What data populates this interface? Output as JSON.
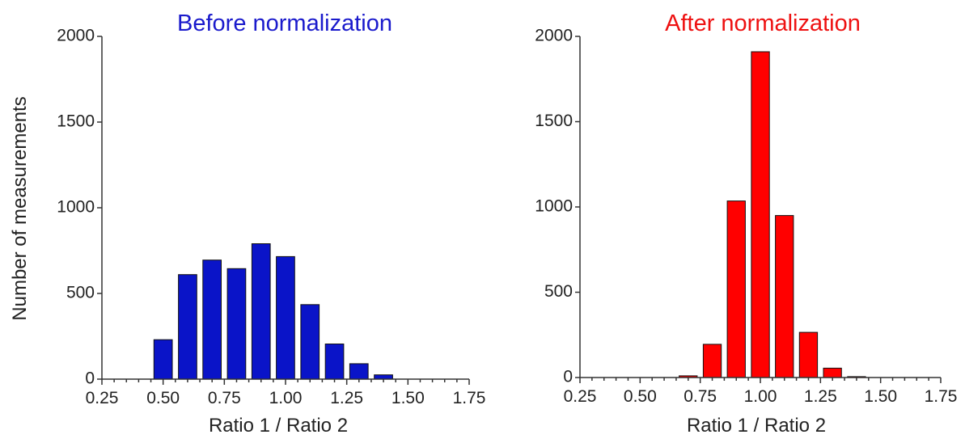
{
  "chart_data": [
    {
      "type": "bar",
      "title": "Before normalization",
      "title_color": "#1a1acc",
      "bar_color": "#0a14c8",
      "xlabel": "Ratio 1 / Ratio 2",
      "ylabel": "Number of measurements",
      "xlim": [
        0.25,
        1.75
      ],
      "ylim": [
        0,
        2000
      ],
      "xticks": [
        "0.25",
        "0.50",
        "0.75",
        "1.00",
        "1.25",
        "1.50",
        "1.75"
      ],
      "yticks": [
        "0",
        "500",
        "1000",
        "1500",
        "2000"
      ],
      "grid": false,
      "bin_width": 0.1,
      "x": [
        0.5,
        0.6,
        0.7,
        0.8,
        0.9,
        1.0,
        1.1,
        1.2,
        1.3,
        1.4
      ],
      "values": [
        230,
        610,
        695,
        645,
        790,
        715,
        435,
        205,
        90,
        25
      ]
    },
    {
      "type": "bar",
      "title": "After normalization",
      "title_color": "#ee1111",
      "bar_color": "#ff0000",
      "xlabel": "Ratio 1 / Ratio 2",
      "ylabel": "",
      "xlim": [
        0.25,
        1.75
      ],
      "ylim": [
        0,
        2000
      ],
      "xticks": [
        "0.25",
        "0.50",
        "0.75",
        "1.00",
        "1.25",
        "1.50",
        "1.75"
      ],
      "yticks": [
        "0",
        "500",
        "1000",
        "1500",
        "2000"
      ],
      "grid": false,
      "bin_width": 0.1,
      "x": [
        0.7,
        0.8,
        0.9,
        1.0,
        1.1,
        1.2,
        1.3,
        1.4
      ],
      "values": [
        10,
        195,
        1035,
        1910,
        950,
        265,
        55,
        5
      ]
    }
  ]
}
